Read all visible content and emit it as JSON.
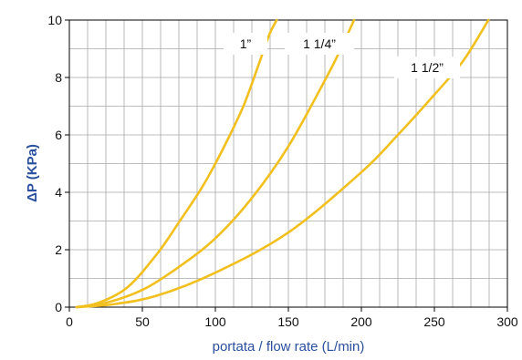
{
  "chart_data": {
    "type": "line",
    "xlabel": "portata / flow rate (L/min)",
    "ylabel": "ΔP (KPa)",
    "xlim": [
      0,
      300
    ],
    "ylim": [
      0,
      10
    ],
    "x_ticks": [
      0,
      50,
      100,
      150,
      200,
      250,
      300
    ],
    "y_ticks": [
      0,
      2,
      4,
      6,
      8,
      10
    ],
    "x_minor_step": 12.5,
    "y_minor_step": 1,
    "grid": true,
    "line_color": "#f2c01e",
    "grid_color": "#a8a8a8",
    "axis_label_color": "#2a4f9e",
    "series": [
      {
        "name": "1”",
        "points": [
          [
            5,
            0.0
          ],
          [
            20,
            0.15
          ],
          [
            40,
            0.7
          ],
          [
            60,
            1.85
          ],
          [
            75,
            2.95
          ],
          [
            90,
            4.1
          ],
          [
            100,
            5.0
          ],
          [
            110,
            6.0
          ],
          [
            120,
            7.1
          ],
          [
            130,
            8.5
          ],
          [
            137,
            9.5
          ],
          [
            142,
            10.0
          ]
        ]
      },
      {
        "name": "1 1/4”",
        "points": [
          [
            5,
            0.0
          ],
          [
            25,
            0.15
          ],
          [
            50,
            0.6
          ],
          [
            75,
            1.4
          ],
          [
            100,
            2.4
          ],
          [
            125,
            3.8
          ],
          [
            150,
            5.6
          ],
          [
            175,
            7.9
          ],
          [
            185,
            8.9
          ],
          [
            195,
            10.0
          ]
        ]
      },
      {
        "name": "1 1/2”",
        "points": [
          [
            5,
            0.0
          ],
          [
            30,
            0.1
          ],
          [
            60,
            0.4
          ],
          [
            100,
            1.2
          ],
          [
            150,
            2.6
          ],
          [
            200,
            4.7
          ],
          [
            225,
            6.0
          ],
          [
            250,
            7.4
          ],
          [
            270,
            8.6
          ],
          [
            287,
            10.0
          ]
        ]
      }
    ]
  }
}
